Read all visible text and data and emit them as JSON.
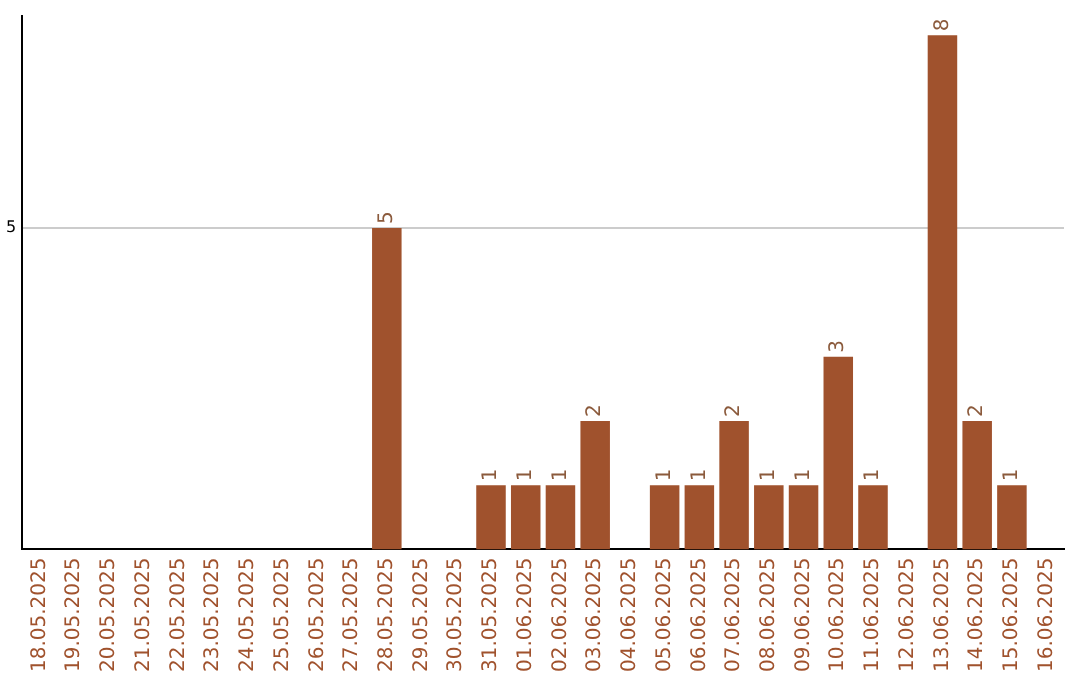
{
  "chart_data": {
    "type": "bar",
    "categories": [
      "18.05.2025",
      "19.05.2025",
      "20.05.2025",
      "21.05.2025",
      "22.05.2025",
      "23.05.2025",
      "24.05.2025",
      "25.05.2025",
      "26.05.2025",
      "27.05.2025",
      "28.05.2025",
      "29.05.2025",
      "30.05.2025",
      "31.05.2025",
      "01.06.2025",
      "02.06.2025",
      "03.06.2025",
      "04.06.2025",
      "05.06.2025",
      "06.06.2025",
      "07.06.2025",
      "08.06.2025",
      "09.06.2025",
      "10.06.2025",
      "11.06.2025",
      "12.06.2025",
      "13.06.2025",
      "14.06.2025",
      "15.06.2025",
      "16.06.2025"
    ],
    "values": [
      0,
      0,
      0,
      0,
      0,
      0,
      0,
      0,
      0,
      0,
      5,
      0,
      0,
      1,
      1,
      1,
      2,
      0,
      1,
      1,
      2,
      1,
      1,
      3,
      1,
      0,
      8,
      2,
      1,
      0
    ],
    "value_labels": [
      null,
      null,
      null,
      null,
      null,
      null,
      null,
      null,
      null,
      null,
      "5",
      null,
      null,
      "1",
      "1",
      "1",
      "2",
      null,
      "1",
      "1",
      "2",
      "1",
      "1",
      "3",
      "1",
      null,
      "8",
      "2",
      "1",
      null
    ],
    "color": "#a0522d",
    "ylim": [
      0,
      8.3
    ],
    "yticks": [
      5
    ],
    "grid": "y",
    "legend": false
  }
}
